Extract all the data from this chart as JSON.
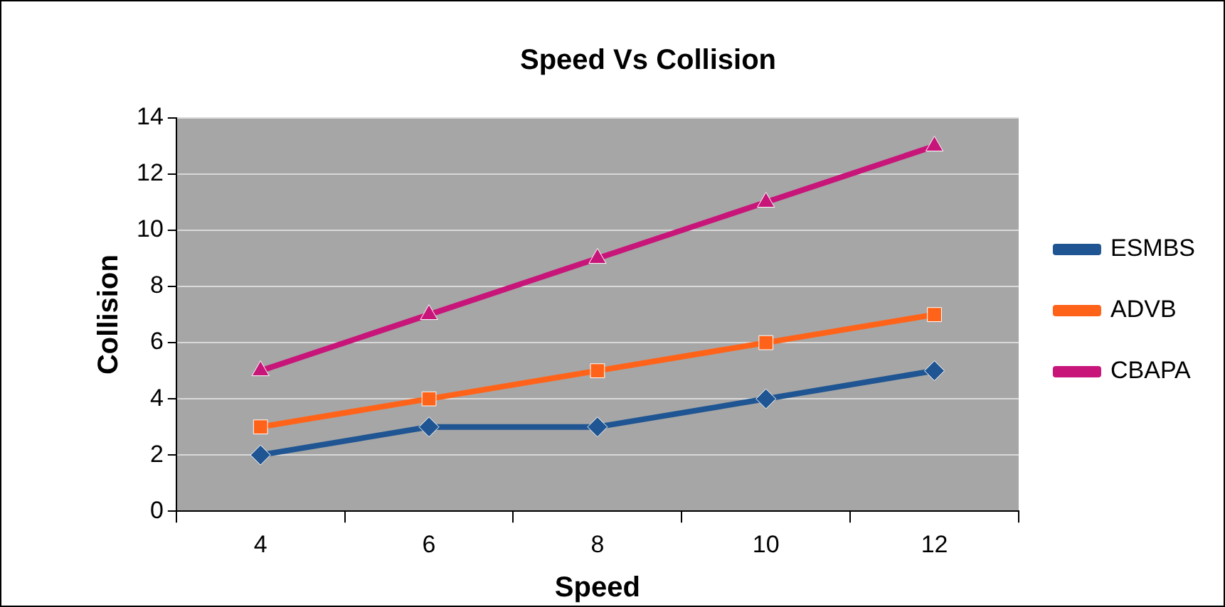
{
  "chart_data": {
    "type": "line",
    "title": "Speed Vs Collision",
    "xlabel": "Speed",
    "ylabel": "Collision",
    "categories": [
      "4",
      "6",
      "8",
      "10",
      "12"
    ],
    "series": [
      {
        "name": "ESMBS",
        "color": "#1f5592",
        "marker": "diamond",
        "values": [
          2,
          3,
          3,
          4,
          5
        ]
      },
      {
        "name": "ADVB",
        "color": "#ff6319",
        "marker": "square",
        "values": [
          3,
          4,
          5,
          6,
          7
        ]
      },
      {
        "name": "CBAPA",
        "color": "#c8157a",
        "marker": "triangle",
        "values": [
          5,
          7,
          9,
          11,
          13
        ]
      }
    ],
    "ylim": [
      0,
      14
    ],
    "yticks": [
      0,
      2,
      4,
      6,
      8,
      10,
      12,
      14
    ],
    "grid": "y",
    "legend": "right",
    "line_style": "solid"
  }
}
